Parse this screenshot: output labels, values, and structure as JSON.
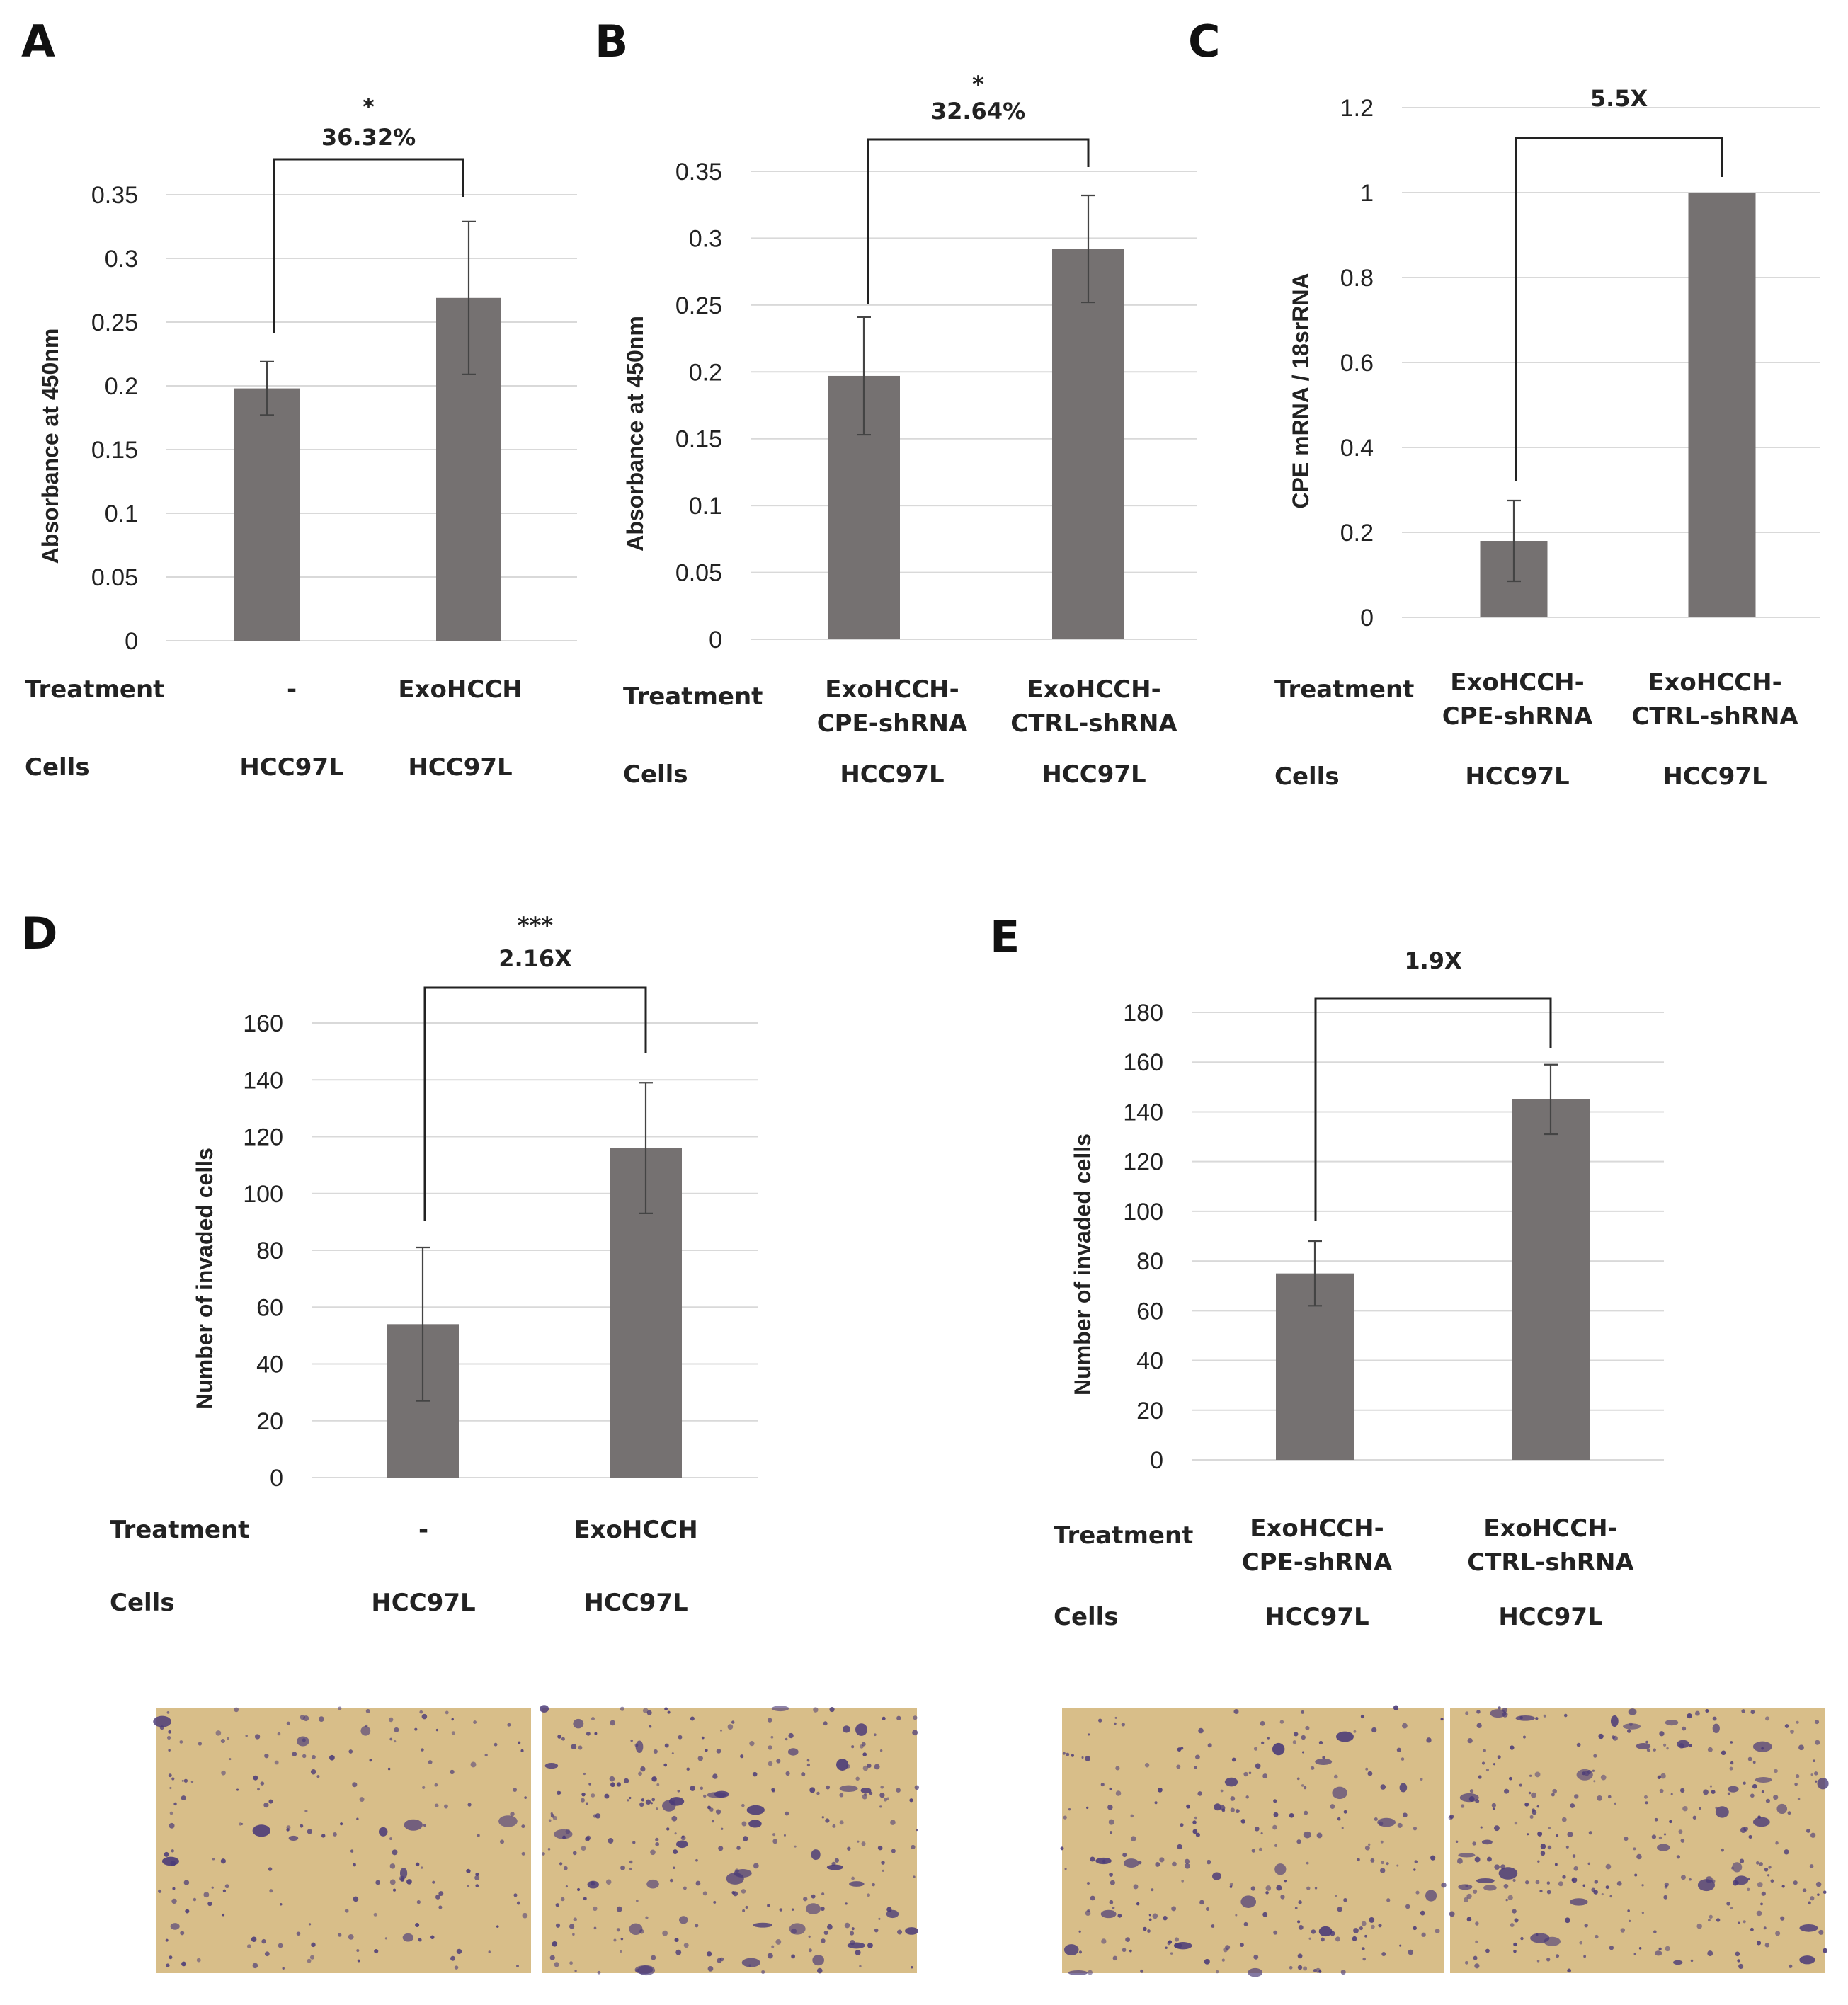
{
  "panels": [
    {
      "letter": "A",
      "chart_data": {
        "type": "bar",
        "categories": [
          "-",
          "ExoHCCH"
        ],
        "values": [
          0.198,
          0.269
        ],
        "errors": [
          0.021,
          0.06
        ],
        "ylabel": "Absorbance at 450nm",
        "ylim": [
          0,
          0.35
        ],
        "yticks": [
          "0",
          "0.05",
          "0.1",
          "0.15",
          "0.2",
          "0.25",
          "0.3",
          "0.35"
        ],
        "grid": true,
        "significance": "*",
        "comparison_label": "36.32%",
        "rows": [
          {
            "label": "Treatment",
            "values": [
              "-",
              "ExoHCCH"
            ]
          },
          {
            "label": "Cells",
            "values": [
              "HCC97L",
              "HCC97L"
            ]
          }
        ]
      }
    },
    {
      "letter": "B",
      "chart_data": {
        "type": "bar",
        "categories": [
          "ExoHCCH-CPE-shRNA",
          "ExoHCCH-CTRL-shRNA"
        ],
        "values": [
          0.197,
          0.292
        ],
        "errors": [
          0.044,
          0.04
        ],
        "ylabel": "Absorbance at 450nm",
        "ylim": [
          0,
          0.35
        ],
        "yticks": [
          "0",
          "0.05",
          "0.1",
          "0.15",
          "0.2",
          "0.25",
          "0.3",
          "0.35"
        ],
        "grid": true,
        "significance": "*",
        "comparison_label": "32.64%",
        "rows": [
          {
            "label": "Treatment",
            "values": [
              "ExoHCCH-\nCPE-shRNA",
              "ExoHCCH-\nCTRL-shRNA"
            ]
          },
          {
            "label": "Cells",
            "values": [
              "HCC97L",
              "HCC97L"
            ]
          }
        ]
      }
    },
    {
      "letter": "C",
      "chart_data": {
        "type": "bar",
        "categories": [
          "ExoHCCH-CPE-shRNA",
          "ExoHCCH-CTRL-shRNA"
        ],
        "values": [
          0.18,
          1.0
        ],
        "errors": [
          0.095,
          0
        ],
        "ylabel": "CPE mRNA / 18srRNA",
        "ylim": [
          0,
          1.2
        ],
        "yticks": [
          "0",
          "0.2",
          "0.4",
          "0.6",
          "0.8",
          "1",
          "1.2"
        ],
        "grid": true,
        "significance": "",
        "comparison_label": "5.5X",
        "rows": [
          {
            "label": "Treatment",
            "values": [
              "ExoHCCH-\nCPE-shRNA",
              "ExoHCCH-\nCTRL-shRNA"
            ]
          },
          {
            "label": "Cells",
            "values": [
              "HCC97L",
              "HCC97L"
            ]
          }
        ]
      }
    },
    {
      "letter": "D",
      "chart_data": {
        "type": "bar",
        "categories": [
          "-",
          "ExoHCCH"
        ],
        "values": [
          54,
          116
        ],
        "errors": [
          27,
          23
        ],
        "ylabel": "Number of invaded cells",
        "ylim": [
          0,
          160
        ],
        "yticks": [
          "0",
          "20",
          "40",
          "60",
          "80",
          "100",
          "120",
          "140",
          "160"
        ],
        "grid": true,
        "significance": "***",
        "comparison_label": "2.16X",
        "rows": [
          {
            "label": "Treatment",
            "values": [
              "-",
              "ExoHCCH"
            ]
          },
          {
            "label": "Cells",
            "values": [
              "HCC97L",
              "HCC97L"
            ]
          }
        ]
      }
    },
    {
      "letter": "E",
      "chart_data": {
        "type": "bar",
        "categories": [
          "ExoHCCH-CPE-shRNA",
          "ExoHCCH-CTRL-shRNA"
        ],
        "values": [
          75,
          145
        ],
        "errors": [
          13,
          14
        ],
        "ylabel": "Number of invaded cells",
        "ylim": [
          0,
          180
        ],
        "yticks": [
          "0",
          "20",
          "40",
          "60",
          "80",
          "100",
          "120",
          "140",
          "160",
          "180"
        ],
        "grid": true,
        "significance": "",
        "comparison_label": "1.9X",
        "rows": [
          {
            "label": "Treatment",
            "values": [
              "ExoHCCH-\nCPE-shRNA",
              "ExoHCCH-\nCTRL-shRNA"
            ]
          },
          {
            "label": "Cells",
            "values": [
              "HCC97L",
              "HCC97L"
            ]
          }
        ]
      }
    }
  ],
  "photos": [
    {
      "id": "photo-d-control",
      "dots": 180,
      "blobs": 12
    },
    {
      "id": "photo-d-exohcch",
      "dots": 260,
      "blobs": 38
    },
    {
      "id": "photo-e-cpe",
      "dots": 230,
      "blobs": 22
    },
    {
      "id": "photo-e-ctrl",
      "dots": 280,
      "blobs": 36
    }
  ],
  "colors": {
    "bar": "#757171",
    "grid": "#d9d9d9",
    "photo_background": "#dcc38e",
    "stain": "#4a3a78"
  }
}
